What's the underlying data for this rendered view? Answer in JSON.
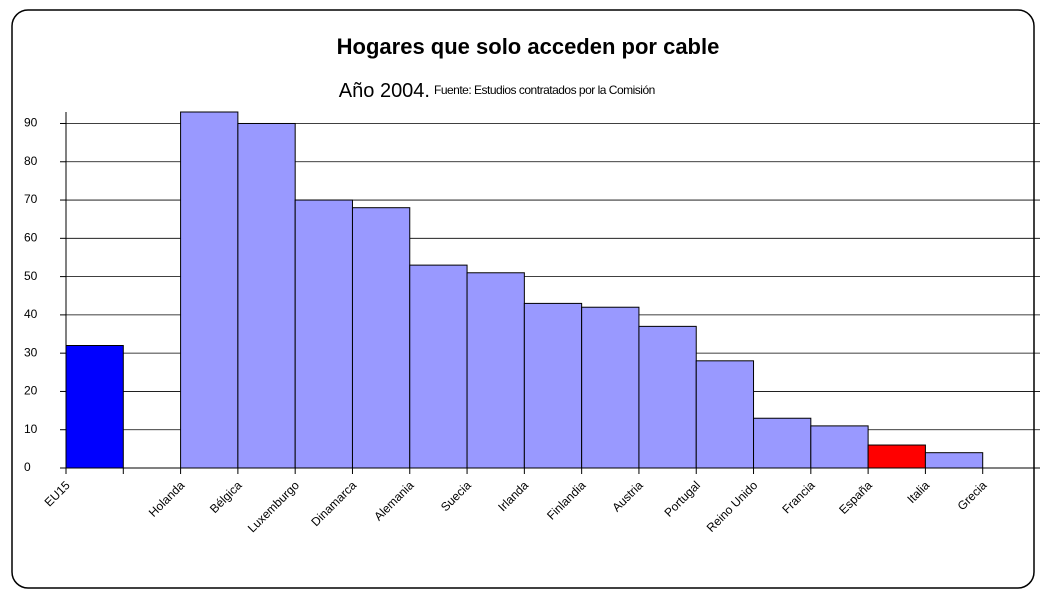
{
  "chart_data": {
    "type": "bar",
    "title": "Hogares que solo acceden por cable",
    "subtitle": "Año 2004.",
    "source": "Fuente: Estudios contratados por la Comisión",
    "categories": [
      "EU15",
      null,
      "Holanda",
      "Bélgica",
      "Luxemburgo",
      "Dinamarca",
      "Alemania",
      "Suecia",
      "Irlanda",
      "Finlandia",
      "Austria",
      "Portugal",
      "Reino Unido",
      "Francia",
      "España",
      "Italia",
      "Grecia"
    ],
    "values": [
      32,
      null,
      93,
      90,
      70,
      68,
      53,
      51,
      43,
      42,
      37,
      28,
      13,
      11,
      6,
      4,
      0
    ],
    "colors": [
      "#0000ff",
      null,
      "#9999ff",
      "#9999ff",
      "#9999ff",
      "#9999ff",
      "#9999ff",
      "#9999ff",
      "#9999ff",
      "#9999ff",
      "#9999ff",
      "#9999ff",
      "#9999ff",
      "#9999ff",
      "#ff0000",
      "#9999ff",
      "#9999ff"
    ],
    "ylim": [
      0,
      93
    ],
    "yticks": [
      0,
      10,
      20,
      30,
      40,
      50,
      60,
      70,
      80,
      90
    ],
    "grid": true
  }
}
